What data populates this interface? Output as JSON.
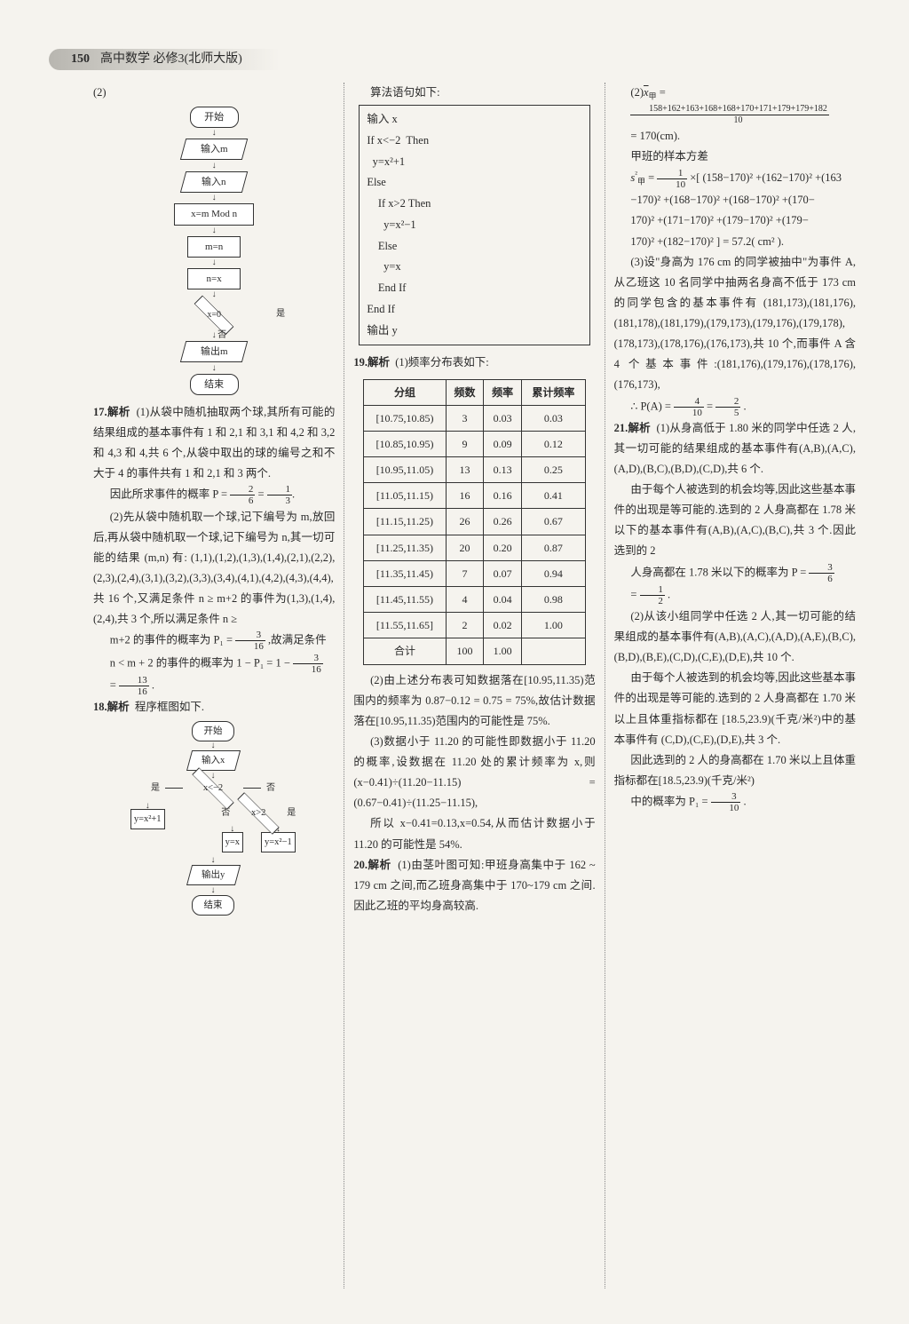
{
  "page": {
    "number": "150",
    "title": "高中数学 必修3(北师大版)"
  },
  "col1": {
    "p2_label": "(2)",
    "flowchart1": {
      "start": "开始",
      "input_m": "输入m",
      "input_n": "输入n",
      "step1": "x=m Mod n",
      "step2": "m=n",
      "step3": "n=x",
      "cond": "x=0",
      "yes": "是",
      "no": "否",
      "output": "输出m",
      "end": "结束"
    },
    "q17_label": "17.解析",
    "q17_p1": "(1)从袋中随机抽取两个球,其所有可能的结果组成的基本事件有 1 和 2,1 和 3,1 和 4,2 和 3,2 和 4,3 和 4,共 6 个,从袋中取出的球的编号之和不大于 4 的事件共有 1 和 2,1 和 3 两个.",
    "q17_p2a": "因此所求事件的概率 P = ",
    "q17_frac1": {
      "num": "2",
      "den": "6"
    },
    "q17_eq": " = ",
    "q17_frac2": {
      "num": "1",
      "den": "3"
    },
    "q17_p3": "(2)先从袋中随机取一个球,记下编号为 m,放回后,再从袋中随机取一个球,记下编号为 n,其一切可能的结果 (m,n) 有: (1,1),(1,2),(1,3),(1,4),(2,1),(2,2),(2,3),(2,4),(3,1),(3,2),(3,3),(3,4),(4,1),(4,2),(4,3),(4,4),共 16 个,又满足条件 n ≥ m+2 的事件为(1,3),(1,4),(2,4),共 3 个,所以满足条件 n ≥",
    "q17_p4a": "m+2 的事件的概率为 P₁ = ",
    "q17_frac3": {
      "num": "3",
      "den": "16"
    },
    "q17_p4b": ",故满足条件",
    "q17_p5a": "n < m + 2 的事件的概率为 1 − P₁ = 1 − ",
    "q17_frac4": {
      "num": "3",
      "den": "16"
    },
    "q17_p6a": "= ",
    "q17_frac5": {
      "num": "13",
      "den": "16"
    },
    "q17_p6b": ".",
    "q18_label": "18.解析",
    "q18_text": "程序框图如下.",
    "flowchart2": {
      "start": "开始",
      "input": "输入x",
      "cond1": "x<−2",
      "cond2": "x>2",
      "yes": "是",
      "no": "否",
      "leaf1": "y=x²+1",
      "leaf2": "y=x",
      "leaf3": "y=x²−1",
      "output": "输出y",
      "end": "结束"
    }
  },
  "col2": {
    "code_caption": "算法语句如下:",
    "code_lines": [
      "输入 x",
      "If x<−2  Then",
      "  y=x²+1",
      "Else",
      "    If x>2 Then",
      "      y=x²−1",
      "    Else",
      "      y=x",
      "    End If",
      "End If",
      "输出 y"
    ],
    "q19_label": "19.解析",
    "q19_text": "(1)频率分布表如下:",
    "table": {
      "headers": [
        "分组",
        "频数",
        "频率",
        "累计频率"
      ],
      "rows": [
        [
          "[10.75,10.85)",
          "3",
          "0.03",
          "0.03"
        ],
        [
          "[10.85,10.95)",
          "9",
          "0.09",
          "0.12"
        ],
        [
          "[10.95,11.05)",
          "13",
          "0.13",
          "0.25"
        ],
        [
          "[11.05,11.15)",
          "16",
          "0.16",
          "0.41"
        ],
        [
          "[11.15,11.25)",
          "26",
          "0.26",
          "0.67"
        ],
        [
          "[11.25,11.35)",
          "20",
          "0.20",
          "0.87"
        ],
        [
          "[11.35,11.45)",
          "7",
          "0.07",
          "0.94"
        ],
        [
          "[11.45,11.55)",
          "4",
          "0.04",
          "0.98"
        ],
        [
          "[11.55,11.65]",
          "2",
          "0.02",
          "1.00"
        ],
        [
          "合计",
          "100",
          "1.00",
          ""
        ]
      ]
    },
    "q19_p2": "(2)由上述分布表可知数据落在[10.95,11.35)范围内的频率为 0.87−0.12 = 0.75 = 75%,故估计数据落在[10.95,11.35)范围内的可能性是 75%.",
    "q19_p3": "(3)数据小于 11.20 的可能性即数据小于 11.20 的概率,设数据在 11.20 处的累计频率为 x,则 (x−0.41)÷(11.20−11.15) = (0.67−0.41)÷(11.25−11.15),",
    "q19_p4": "所以 x−0.41=0.13,x=0.54,从而估计数据小于 11.20 的可能性是 54%.",
    "q20_label": "20.解析",
    "q20_p1": "(1)由茎叶图可知:甲班身高集中于 162 ~ 179 cm 之间,而乙班身高集中于 170~179 cm 之间.因此乙班的平均身高较高."
  },
  "col3": {
    "p2_label_a": "(2)",
    "p2_label_b": "甲",
    "p2_label_c": " =",
    "longfrac1": {
      "num": "158+162+163+168+168+170+171+179+179+182",
      "den": "10"
    },
    "p2_res": "= 170(cm).",
    "p2_var_label": "甲班的样本方差",
    "var_a": "s",
    "var_a2": "²",
    "var_sub": "甲",
    "var_b": " = ",
    "frac_var": {
      "num": "1",
      "den": "10"
    },
    "var_c": "×[ (158−170)² +(162−170)² +(163",
    "var_line2": "−170)² +(168−170)² +(168−170)² +(170−",
    "var_line3": "170)² +(171−170)² +(179−170)² +(179−",
    "var_line4": "170)² +(182−170)² ] = 57.2( cm² ).",
    "p3": "(3)设\"身高为 176 cm 的同学被抽中\"为事件 A,从乙班这 10 名同学中抽两名身高不低于 173 cm 的同学包含的基本事件有 (181,173),(181,176),(181,178),(181,179),(179,173),(179,176),(179,178),(178,173),(178,176),(176,173),共 10 个,而事件 A 含 4 个基本事件:(181,176),(179,176),(178,176),(176,173),",
    "p3_fa": "∴ P(A) = ",
    "frac_pa1": {
      "num": "4",
      "den": "10"
    },
    "p3_eq": " = ",
    "frac_pa2": {
      "num": "2",
      "den": "5"
    },
    "p3_end": ".",
    "q21_label": "21.解析",
    "q21_p1": "(1)从身高低于 1.80 米的同学中任选 2 人,其一切可能的结果组成的基本事件有(A,B),(A,C),(A,D),(B,C),(B,D),(C,D),共 6 个.",
    "q21_p2a": "由于每个人被选到的机会均等,因此这些基本事件的出现是等可能的.选到的 2 人身高都在 1.78 米以下的基本事件有(A,B),(A,C),(B,C),共 3 个.因此选到的 2",
    "q21_p2b": "人身高都在 1.78 米以下的概率为 P = ",
    "frac_p": {
      "num": "3",
      "den": "6"
    },
    "q21_p2c": "= ",
    "frac_half": {
      "num": "1",
      "den": "2"
    },
    "q21_p2d": ".",
    "q21_p3": "(2)从该小组同学中任选 2 人,其一切可能的结果组成的基本事件有(A,B),(A,C),(A,D),(A,E),(B,C),(B,D),(B,E),(C,D),(C,E),(D,E),共 10 个.",
    "q21_p4": "由于每个人被选到的机会均等,因此这些基本事件的出现是等可能的.选到的 2 人身高都在 1.70 米以上且体重指标都在 [18.5,23.9)(千克/米²)中的基本事件有 (C,D),(C,E),(D,E),共 3 个.",
    "q21_p5a": "因此选到的 2 人的身高都在 1.70 米以上且体重指标都在[18.5,23.9)(千克/米²)",
    "q21_p5b": "中的概率为 P₁ = ",
    "frac_p1": {
      "num": "3",
      "den": "10"
    },
    "q21_p5c": "."
  }
}
